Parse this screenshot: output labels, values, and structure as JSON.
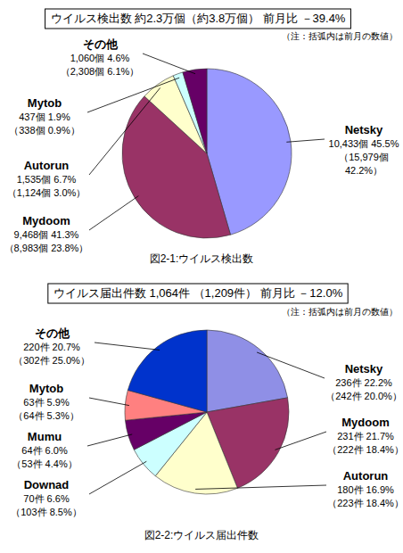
{
  "chart_data": [
    {
      "type": "pie",
      "title": "ウイルス検出数 約2.3万個（約3.8万個） 前月比 －39.4%",
      "subtitle": "（注：括弧内は前月の数値）",
      "caption": "図2-1:ウイルス検出数",
      "categories": [
        "Netsky",
        "Mydoom",
        "Autorun",
        "Mytob",
        "その他"
      ],
      "values": [
        45.5,
        41.3,
        6.7,
        1.9,
        4.6
      ],
      "value_labels": [
        "45.5%",
        "41.3%",
        "6.7%",
        "1.9%",
        "4.6%"
      ],
      "count_labels": [
        "10,433個",
        "9,468個",
        "1,535個",
        "437個",
        "1,060個"
      ],
      "prev_count_labels": [
        "（15,979個",
        "（8,983個",
        "（1,124個",
        "（338個",
        "（2,308個"
      ],
      "prev_value_labels": [
        "42.2%）",
        "23.8%）",
        "3.0%）",
        "0.9%）",
        "6.1%）"
      ],
      "colors": [
        "#9999ff",
        "#993366",
        "#ffffcc",
        "#ccffff",
        "#660066"
      ],
      "data_labels": true
    },
    {
      "type": "pie",
      "title": "ウイルス届出件数 1,064件 （1,209件） 前月比 －12.0%",
      "subtitle": "（注：括弧内は前月の数値）",
      "caption": "図2-2:ウイルス届出件数",
      "categories": [
        "Netsky",
        "Mydoom",
        "Autorun",
        "Downad",
        "Mumu",
        "Mytob",
        "その他"
      ],
      "values": [
        22.2,
        21.7,
        16.9,
        6.6,
        6.0,
        5.9,
        20.7
      ],
      "value_labels": [
        "22.2%",
        "21.7%",
        "16.9%",
        "6.6%",
        "6.0%",
        "5.9%",
        "20.7%"
      ],
      "count_labels": [
        "236件",
        "231件",
        "180件",
        "70件",
        "64件",
        "63件",
        "220件"
      ],
      "prev_count_labels": [
        "（242件",
        "（222件",
        "（223件",
        "（103件",
        "（53件",
        "（64件",
        "（302件"
      ],
      "prev_value_labels": [
        "20.0%）",
        "18.4%）",
        "18.4%）",
        "8.5%）",
        "4.4%）",
        "5.3%）",
        "25.0%）"
      ],
      "colors": [
        "#8f8fe6",
        "#993366",
        "#ffffcc",
        "#ccffff",
        "#660066",
        "#ff8080",
        "#0033cc"
      ],
      "data_labels": true
    }
  ]
}
